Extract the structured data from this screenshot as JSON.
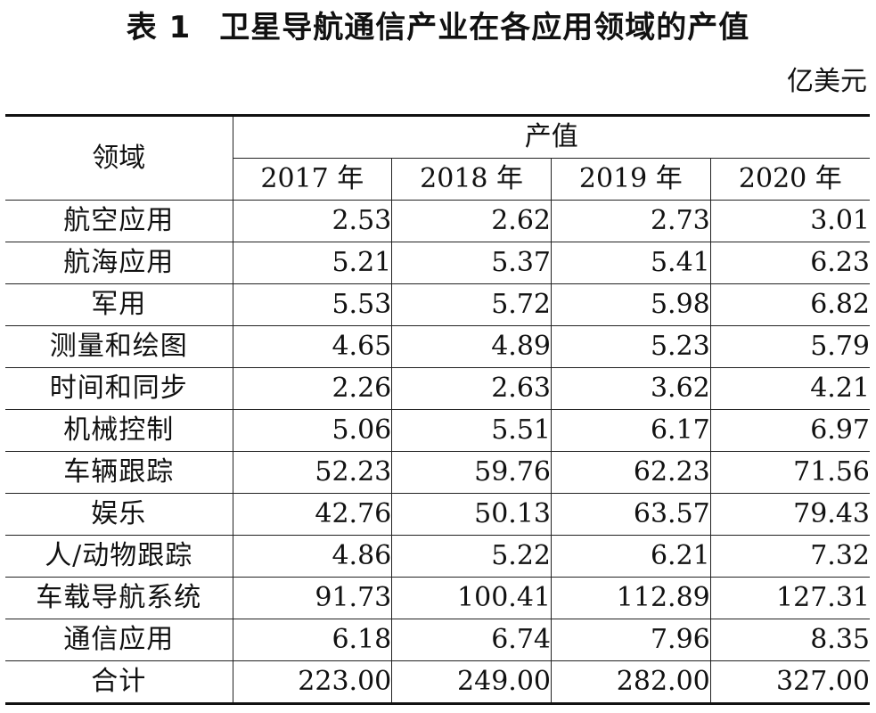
{
  "title": {
    "label": "表 1",
    "text": "卫星导航通信产业在各应用领域的产值"
  },
  "unit": "亿美元",
  "table": {
    "row_header": "领域",
    "group_header": "产值",
    "years": [
      "2017 年",
      "2018 年",
      "2019 年",
      "2020 年"
    ],
    "rows": [
      {
        "name": "航空应用",
        "values": [
          "2.53",
          "2.62",
          "2.73",
          "3.01"
        ]
      },
      {
        "name": "航海应用",
        "values": [
          "5.21",
          "5.37",
          "5.41",
          "6.23"
        ]
      },
      {
        "name": "军用",
        "values": [
          "5.53",
          "5.72",
          "5.98",
          "6.82"
        ]
      },
      {
        "name": "测量和绘图",
        "values": [
          "4.65",
          "4.89",
          "5.23",
          "5.79"
        ]
      },
      {
        "name": "时间和同步",
        "values": [
          "2.26",
          "2.63",
          "3.62",
          "4.21"
        ]
      },
      {
        "name": "机械控制",
        "values": [
          "5.06",
          "5.51",
          "6.17",
          "6.97"
        ]
      },
      {
        "name": "车辆跟踪",
        "values": [
          "52.23",
          "59.76",
          "62.23",
          "71.56"
        ]
      },
      {
        "name": "娱乐",
        "values": [
          "42.76",
          "50.13",
          "63.57",
          "79.43"
        ]
      },
      {
        "name": "人/动物跟踪",
        "values": [
          "4.86",
          "5.22",
          "6.21",
          "7.32"
        ]
      },
      {
        "name": "车载导航系统",
        "values": [
          "91.73",
          "100.41",
          "112.89",
          "127.31"
        ]
      },
      {
        "name": "通信应用",
        "values": [
          "6.18",
          "6.74",
          "7.96",
          "8.35"
        ]
      },
      {
        "name": "合计",
        "values": [
          "223.00",
          "249.00",
          "282.00",
          "327.00"
        ]
      }
    ]
  }
}
